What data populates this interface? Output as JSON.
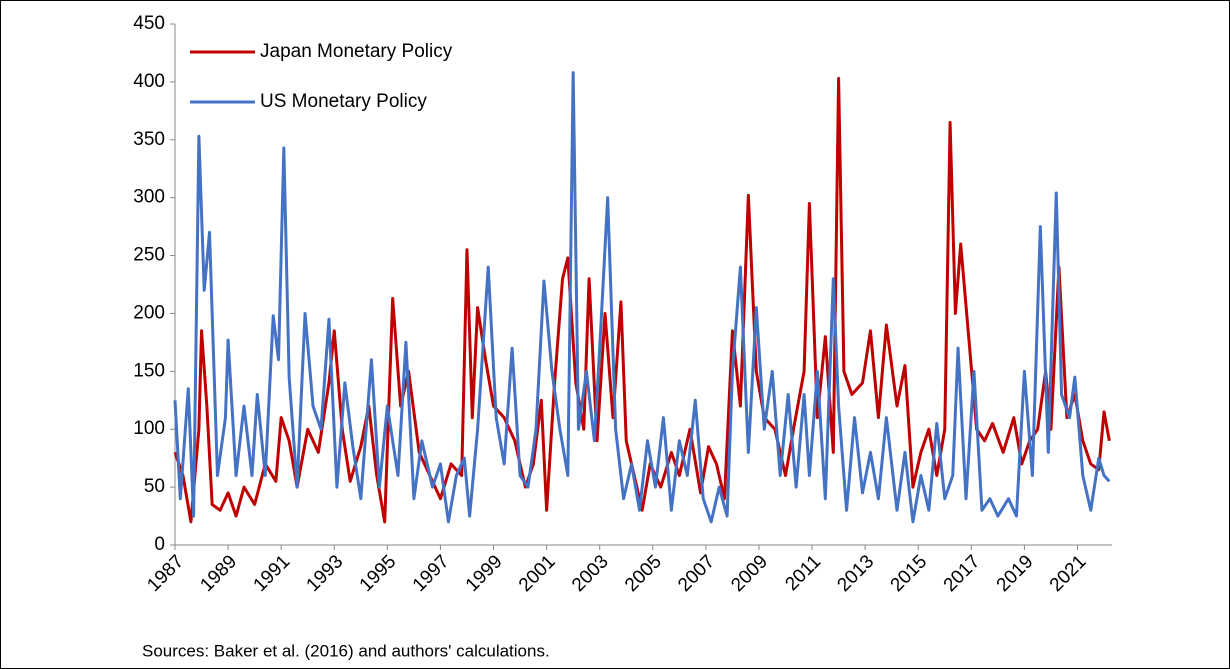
{
  "chart_data": {
    "type": "line",
    "note": "Sources: Baker et al. (2016) and authors' calculations.",
    "xlim": [
      1987,
      2022.3
    ],
    "xticks": [
      1987,
      1989,
      1991,
      1993,
      1995,
      1997,
      1999,
      2001,
      2003,
      2005,
      2007,
      2009,
      2011,
      2013,
      2015,
      2017,
      2019,
      2021
    ],
    "ylim": [
      0,
      450
    ],
    "yticks": [
      0,
      50,
      100,
      150,
      200,
      250,
      300,
      350,
      400,
      450
    ],
    "legend": "upper left",
    "series": [
      {
        "name": "Japan Monetary Policy",
        "color": "#c00000",
        "x": [
          1987.0,
          1987.3,
          1987.6,
          1987.9,
          1988.0,
          1988.2,
          1988.4,
          1988.7,
          1989.0,
          1989.3,
          1989.6,
          1990.0,
          1990.4,
          1990.8,
          1991.0,
          1991.3,
          1991.6,
          1992.0,
          1992.4,
          1992.8,
          1993.0,
          1993.3,
          1993.6,
          1994.0,
          1994.3,
          1994.6,
          1994.9,
          1995.2,
          1995.5,
          1995.8,
          1996.2,
          1996.6,
          1997.0,
          1997.4,
          1997.8,
          1998.0,
          1998.2,
          1998.4,
          1998.7,
          1999.0,
          1999.4,
          1999.8,
          2000.2,
          2000.5,
          2000.8,
          2001.0,
          2001.3,
          2001.6,
          2001.8,
          2002.1,
          2002.4,
          2002.6,
          2002.9,
          2003.2,
          2003.5,
          2003.8,
          2004.0,
          2004.3,
          2004.6,
          2004.9,
          2005.3,
          2005.7,
          2006.0,
          2006.4,
          2006.8,
          2007.1,
          2007.4,
          2007.7,
          2008.0,
          2008.3,
          2008.6,
          2008.9,
          2009.2,
          2009.6,
          2010.0,
          2010.3,
          2010.7,
          2010.9,
          2011.2,
          2011.5,
          2011.8,
          2012.0,
          2012.2,
          2012.5,
          2012.9,
          2013.2,
          2013.5,
          2013.8,
          2014.2,
          2014.5,
          2014.8,
          2015.1,
          2015.4,
          2015.7,
          2016.0,
          2016.2,
          2016.4,
          2016.6,
          2016.9,
          2017.2,
          2017.5,
          2017.8,
          2018.2,
          2018.6,
          2018.9,
          2019.2,
          2019.5,
          2019.8,
          2020.0,
          2020.3,
          2020.6,
          2020.9,
          2021.2,
          2021.5,
          2021.8,
          2022.0,
          2022.2
        ],
        "values": [
          80,
          60,
          20,
          100,
          185,
          120,
          35,
          30,
          45,
          25,
          50,
          35,
          70,
          55,
          110,
          90,
          50,
          100,
          80,
          140,
          185,
          100,
          55,
          85,
          120,
          60,
          20,
          213,
          120,
          150,
          80,
          60,
          40,
          70,
          60,
          255,
          110,
          205,
          160,
          120,
          110,
          90,
          50,
          70,
          125,
          30,
          140,
          230,
          248,
          140,
          100,
          230,
          90,
          200,
          110,
          210,
          90,
          60,
          30,
          70,
          50,
          80,
          60,
          100,
          45,
          85,
          70,
          40,
          185,
          120,
          302,
          150,
          110,
          100,
          60,
          100,
          150,
          295,
          110,
          180,
          80,
          403,
          150,
          130,
          140,
          185,
          110,
          190,
          120,
          155,
          50,
          80,
          100,
          60,
          100,
          365,
          200,
          260,
          180,
          100,
          90,
          105,
          80,
          110,
          70,
          90,
          100,
          150,
          100,
          240,
          110,
          130,
          90,
          70,
          65,
          115,
          90
        ]
      },
      {
        "name": "US Monetary Policy",
        "color": "#4472c4",
        "x": [
          1987.0,
          1987.2,
          1987.5,
          1987.7,
          1987.9,
          1988.1,
          1988.3,
          1988.6,
          1988.9,
          1989.0,
          1989.3,
          1989.6,
          1989.9,
          1990.1,
          1990.4,
          1990.7,
          1990.9,
          1991.1,
          1991.3,
          1991.6,
          1991.9,
          1992.2,
          1992.5,
          1992.8,
          1993.1,
          1993.4,
          1993.7,
          1994.0,
          1994.4,
          1994.7,
          1995.0,
          1995.4,
          1995.7,
          1996.0,
          1996.3,
          1996.7,
          1997.0,
          1997.3,
          1997.6,
          1997.9,
          1998.1,
          1998.4,
          1998.8,
          1999.1,
          1999.4,
          1999.7,
          2000.0,
          2000.3,
          2000.6,
          2000.9,
          2001.2,
          2001.5,
          2001.8,
          2002.0,
          2002.2,
          2002.5,
          2002.8,
          2003.0,
          2003.3,
          2003.6,
          2003.9,
          2004.2,
          2004.5,
          2004.8,
          2005.1,
          2005.4,
          2005.7,
          2006.0,
          2006.3,
          2006.6,
          2006.9,
          2007.2,
          2007.5,
          2007.8,
          2008.0,
          2008.3,
          2008.6,
          2008.9,
          2009.2,
          2009.5,
          2009.8,
          2010.1,
          2010.4,
          2010.7,
          2010.9,
          2011.2,
          2011.5,
          2011.8,
          2012.0,
          2012.3,
          2012.6,
          2012.9,
          2013.2,
          2013.5,
          2013.8,
          2014.2,
          2014.5,
          2014.8,
          2015.1,
          2015.4,
          2015.7,
          2016.0,
          2016.3,
          2016.5,
          2016.8,
          2017.1,
          2017.4,
          2017.7,
          2018.0,
          2018.4,
          2018.7,
          2019.0,
          2019.3,
          2019.6,
          2019.9,
          2020.2,
          2020.4,
          2020.7,
          2020.9,
          2021.2,
          2021.5,
          2021.8,
          2022.0,
          2022.2
        ],
        "values": [
          125,
          40,
          135,
          25,
          353,
          220,
          270,
          60,
          110,
          177,
          60,
          120,
          60,
          130,
          60,
          198,
          160,
          343,
          145,
          50,
          200,
          120,
          100,
          195,
          50,
          140,
          85,
          40,
          160,
          50,
          120,
          60,
          175,
          40,
          90,
          50,
          70,
          20,
          60,
          75,
          25,
          100,
          240,
          110,
          70,
          170,
          60,
          50,
          100,
          228,
          150,
          100,
          60,
          408,
          100,
          150,
          90,
          170,
          300,
          100,
          40,
          70,
          30,
          90,
          50,
          110,
          30,
          90,
          60,
          125,
          40,
          20,
          50,
          25,
          150,
          240,
          80,
          205,
          100,
          150,
          60,
          130,
          50,
          130,
          60,
          150,
          40,
          230,
          120,
          30,
          110,
          45,
          80,
          40,
          110,
          30,
          80,
          20,
          60,
          30,
          105,
          40,
          60,
          170,
          40,
          150,
          30,
          40,
          25,
          40,
          25,
          150,
          60,
          275,
          80,
          304,
          130,
          110,
          145,
          60,
          30,
          75,
          60,
          55
        ]
      }
    ]
  }
}
